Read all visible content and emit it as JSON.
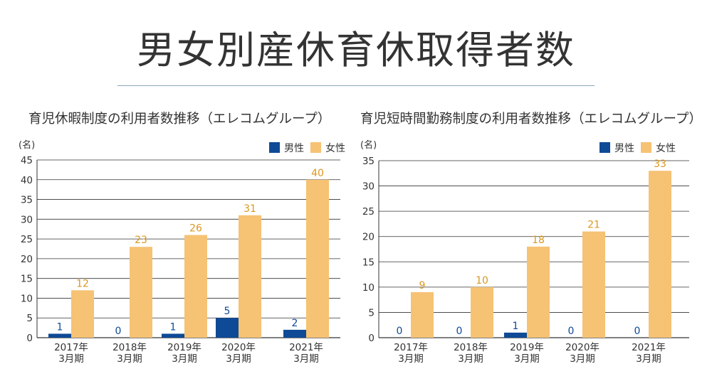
{
  "page": {
    "title": "男女別産休育休取得者数"
  },
  "colors": {
    "male": "#0e4a96",
    "female": "#f6c274",
    "female_label": "#d99820",
    "male_label": "#0e4a96",
    "grid": "#333333"
  },
  "chart_data": [
    {
      "type": "bar",
      "title": "育児休暇制度の利用者数推移（エレコムグループ）",
      "unit_label": "(名)",
      "categories": [
        "2017年 3月期",
        "2018年 3月期",
        "2019年 3月期",
        "2020年 3月期",
        "2021年 3月期"
      ],
      "series": [
        {
          "name": "男性",
          "values": [
            1,
            0,
            1,
            5,
            2
          ]
        },
        {
          "name": "女性",
          "values": [
            12,
            23,
            26,
            31,
            40
          ]
        }
      ],
      "ylim": [
        0,
        45
      ],
      "yticks": [
        0,
        5,
        10,
        15,
        20,
        25,
        30,
        35,
        40,
        45
      ],
      "grid": true,
      "legend_position": "top-right"
    },
    {
      "type": "bar",
      "title": "育児短時間勤務制度の利用者数推移（エレコムグループ）",
      "unit_label": "(名)",
      "categories": [
        "2017年 3月期",
        "2018年 3月期",
        "2019年 3月期",
        "2020年 3月期",
        "2021年 3月期"
      ],
      "series": [
        {
          "name": "男性",
          "values": [
            0,
            0,
            1,
            0,
            0
          ]
        },
        {
          "name": "女性",
          "values": [
            9,
            10,
            18,
            21,
            33
          ]
        }
      ],
      "ylim": [
        0,
        35
      ],
      "yticks": [
        0,
        5,
        10,
        15,
        20,
        25,
        30,
        35
      ],
      "grid": true,
      "legend_position": "top-right"
    }
  ]
}
